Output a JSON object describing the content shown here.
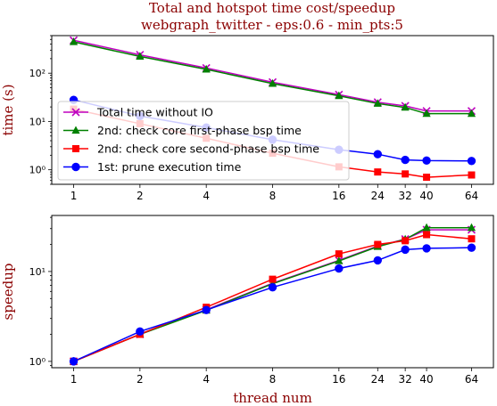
{
  "title_line1": "Total and hotspot time cost/speedup",
  "title_line2": "webgraph_twitter - eps:0.6 - min_pts:5",
  "title_color": "#8b0000",
  "chart_data": [
    {
      "type": "line",
      "panel": "top",
      "ylabel": "time (s)",
      "yscale": "log",
      "ylim": [
        0.5,
        600
      ],
      "yticks": [
        1,
        10,
        100
      ],
      "ytick_labels": [
        "10⁰",
        "10¹",
        "10²"
      ],
      "x": [
        1,
        2,
        4,
        8,
        16,
        24,
        32,
        40,
        64
      ],
      "x_tick_labels": [
        "1",
        "2",
        "4",
        "8",
        "16",
        "24",
        "32",
        "40",
        "64"
      ],
      "legend_position": "center-left",
      "series": [
        {
          "name": "Total time without IO",
          "color": "#bf00bf",
          "marker": "x",
          "values": [
            480,
            240,
            128,
            65,
            36,
            25,
            21,
            16.5,
            16.5
          ]
        },
        {
          "name": "2nd: check core first-phase bsp time",
          "color": "#008000",
          "marker": "triangle",
          "values": [
            445,
            222,
            120,
            61,
            34,
            23.5,
            19.5,
            14.5,
            14.5
          ]
        },
        {
          "name": "2nd: check core second-phase bsp time",
          "color": "#ff0000",
          "marker": "square",
          "values": [
            18,
            9,
            4.5,
            2.2,
            1.15,
            0.9,
            0.82,
            0.7,
            0.78
          ]
        },
        {
          "name": "1st: prune execution time",
          "color": "#0000ff",
          "marker": "circle",
          "values": [
            28,
            13,
            7.5,
            4.2,
            2.6,
            2.1,
            1.6,
            1.55,
            1.52
          ]
        }
      ]
    },
    {
      "type": "line",
      "panel": "bottom",
      "xlabel": "thread num",
      "ylabel": "speedup",
      "yscale": "log",
      "ylim": [
        0.85,
        42
      ],
      "yticks": [
        1,
        10
      ],
      "ytick_labels": [
        "10⁰",
        "10¹"
      ],
      "x": [
        1,
        2,
        4,
        8,
        16,
        24,
        32,
        40,
        64
      ],
      "x_tick_labels": [
        "1",
        "2",
        "4",
        "8",
        "16",
        "24",
        "32",
        "40",
        "64"
      ],
      "series": [
        {
          "color": "#bf00bf",
          "marker": "x",
          "values": [
            1,
            2.0,
            3.75,
            7.4,
            13.3,
            19.2,
            22.9,
            29.1,
            29.1
          ]
        },
        {
          "color": "#008000",
          "marker": "triangle",
          "values": [
            1,
            2.0,
            3.7,
            7.3,
            13.1,
            18.9,
            22.8,
            30.7,
            30.7
          ]
        },
        {
          "color": "#ff0000",
          "marker": "square",
          "values": [
            1,
            2.0,
            4.0,
            8.2,
            15.7,
            20.0,
            22.0,
            25.7,
            23.1
          ]
        },
        {
          "color": "#0000ff",
          "marker": "circle",
          "values": [
            1,
            2.15,
            3.73,
            6.67,
            10.8,
            13.3,
            17.5,
            18.1,
            18.4
          ]
        }
      ]
    }
  ]
}
